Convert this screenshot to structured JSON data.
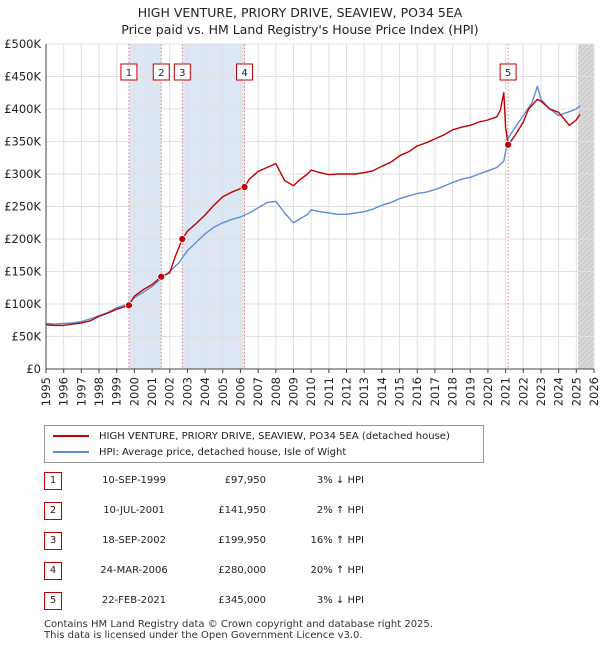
{
  "title_line1": "HIGH VENTURE, PRIORY DRIVE, SEAVIEW, PO34 5EA",
  "title_line2": "Price paid vs. HM Land Registry's House Price Index (HPI)",
  "colors": {
    "property": "#c00000",
    "hpi": "#5b8ed6",
    "shade": "#dde6f5",
    "future": "#d8d8d8",
    "grid": "#e0e0e0",
    "vline": "#e08080"
  },
  "legend": {
    "property_label": "HIGH VENTURE, PRIORY DRIVE, SEAVIEW, PO34 5EA (detached house)",
    "hpi_label": "HPI: Average price, detached house, Isle of Wight"
  },
  "sales": [
    {
      "num": "1",
      "date": "10-SEP-1999",
      "price": "£97,950",
      "hpi": "3% ↓ HPI"
    },
    {
      "num": "2",
      "date": "10-JUL-2001",
      "price": "£141,950",
      "hpi": "2% ↑ HPI"
    },
    {
      "num": "3",
      "date": "18-SEP-2002",
      "price": "£199,950",
      "hpi": "16% ↑ HPI"
    },
    {
      "num": "4",
      "date": "24-MAR-2006",
      "price": "£280,000",
      "hpi": "20% ↑ HPI"
    },
    {
      "num": "5",
      "date": "22-FEB-2021",
      "price": "£345,000",
      "hpi": "3% ↓ HPI"
    }
  ],
  "footer": {
    "line1": "Contains HM Land Registry data © Crown copyright and database right 2025.",
    "line2": "This data is licensed under the Open Government Licence v3.0."
  },
  "chart_data": {
    "type": "line",
    "title": "HIGH VENTURE, PRIORY DRIVE, SEAVIEW, PO34 5EA — Price paid vs. HM Land Registry's House Price Index (HPI)",
    "xlabel": "",
    "ylabel": "",
    "xlim": [
      1995,
      2026
    ],
    "ylim": [
      0,
      500000
    ],
    "x_ticks": [
      "1995",
      "1996",
      "1997",
      "1998",
      "1999",
      "2000",
      "2001",
      "2002",
      "2003",
      "2004",
      "2005",
      "2006",
      "2007",
      "2008",
      "2009",
      "2010",
      "2011",
      "2012",
      "2013",
      "2014",
      "2015",
      "2016",
      "2017",
      "2018",
      "2019",
      "2020",
      "2021",
      "2022",
      "2023",
      "2024",
      "2025",
      "2026"
    ],
    "y_ticks": [
      {
        "value": 0,
        "label": "£0"
      },
      {
        "value": 50000,
        "label": "£50K"
      },
      {
        "value": 100000,
        "label": "£100K"
      },
      {
        "value": 150000,
        "label": "£150K"
      },
      {
        "value": 200000,
        "label": "£200K"
      },
      {
        "value": 250000,
        "label": "£250K"
      },
      {
        "value": 300000,
        "label": "£300K"
      },
      {
        "value": 350000,
        "label": "£350K"
      },
      {
        "value": 400000,
        "label": "£400K"
      },
      {
        "value": 450000,
        "label": "£450K"
      },
      {
        "value": 500000,
        "label": "£500K"
      }
    ],
    "shaded_ranges": [
      [
        1999.69,
        2001.52
      ],
      [
        2002.71,
        2006.23
      ]
    ],
    "future_from": 2025.1,
    "sale_markers": [
      {
        "label": "1",
        "x": 1999.69,
        "y": 97950
      },
      {
        "label": "2",
        "x": 2001.52,
        "y": 141950
      },
      {
        "label": "3",
        "x": 2002.71,
        "y": 199950
      },
      {
        "label": "4",
        "x": 2006.23,
        "y": 280000
      },
      {
        "label": "5",
        "x": 2021.14,
        "y": 345000
      }
    ],
    "series": [
      {
        "name": "HIGH VENTURE, PRIORY DRIVE, SEAVIEW, PO34 5EA (detached house)",
        "x": [
          1995,
          1995.5,
          1996,
          1996.5,
          1997,
          1997.5,
          1998,
          1998.5,
          1999,
          1999.69,
          2000,
          2000.5,
          2001,
          2001.52,
          2002,
          2002.3,
          2002.71,
          2003,
          2003.5,
          2004,
          2004.5,
          2005,
          2005.5,
          2006.23,
          2006.5,
          2007,
          2007.5,
          2008,
          2008.5,
          2009,
          2009.3,
          2009.8,
          2010,
          2010.5,
          2011,
          2011.5,
          2012,
          2012.5,
          2013,
          2013.5,
          2014,
          2014.5,
          2015,
          2015.5,
          2016,
          2016.5,
          2017,
          2017.5,
          2018,
          2018.5,
          2019,
          2019.5,
          2020,
          2020.5,
          2020.7,
          2020.9,
          2021.0,
          2021.14,
          2021.5,
          2022,
          2022.3,
          2022.8,
          2023,
          2023.5,
          2024,
          2024.3,
          2024.6,
          2025,
          2025.2
        ],
        "values": [
          68000,
          67000,
          67000,
          69000,
          71000,
          74000,
          81000,
          86000,
          92000,
          97950,
          112000,
          122000,
          130000,
          141950,
          148000,
          172000,
          199950,
          212000,
          224000,
          237000,
          252000,
          265000,
          272000,
          280000,
          292000,
          304000,
          310000,
          316000,
          290000,
          282000,
          290000,
          300000,
          306000,
          302000,
          299000,
          300000,
          300000,
          300000,
          302000,
          305000,
          312000,
          318000,
          328000,
          334000,
          343000,
          348000,
          354000,
          360000,
          368000,
          372000,
          375000,
          380000,
          383000,
          388000,
          398000,
          425000,
          372000,
          345000,
          358000,
          380000,
          400000,
          415000,
          412000,
          400000,
          395000,
          385000,
          375000,
          383000,
          392000
        ]
      },
      {
        "name": "HPI: Average price, detached house, Isle of Wight",
        "x": [
          1995,
          1995.5,
          1996,
          1996.5,
          1997,
          1997.5,
          1998,
          1998.5,
          1999,
          1999.69,
          2000,
          2000.5,
          2001,
          2001.52,
          2002,
          2002.5,
          2003,
          2003.5,
          2004,
          2004.5,
          2005,
          2005.5,
          2006,
          2006.5,
          2007,
          2007.5,
          2008,
          2008.5,
          2009,
          2009.3,
          2009.8,
          2010,
          2010.5,
          2011,
          2011.5,
          2012,
          2012.5,
          2013,
          2013.5,
          2014,
          2014.5,
          2015,
          2015.5,
          2016,
          2016.5,
          2017,
          2017.5,
          2018,
          2018.5,
          2019,
          2019.5,
          2020,
          2020.5,
          2020.9,
          2021.14,
          2021.5,
          2022,
          2022.5,
          2022.8,
          2023,
          2023.5,
          2024,
          2024.5,
          2025,
          2025.2
        ],
        "values": [
          70000,
          69000,
          70000,
          71000,
          73000,
          77000,
          82000,
          87000,
          94000,
          101000,
          110000,
          118000,
          127000,
          139000,
          150000,
          163000,
          182000,
          195000,
          208000,
          218000,
          225000,
          230000,
          234000,
          240000,
          248000,
          256000,
          258000,
          240000,
          225000,
          230000,
          238000,
          245000,
          242000,
          240000,
          238000,
          238000,
          240000,
          242000,
          246000,
          252000,
          256000,
          262000,
          266000,
          270000,
          272000,
          276000,
          281000,
          287000,
          292000,
          295000,
          300000,
          305000,
          310000,
          320000,
          355000,
          370000,
          390000,
          410000,
          435000,
          415000,
          400000,
          390000,
          395000,
          400000,
          405000
        ]
      }
    ]
  }
}
